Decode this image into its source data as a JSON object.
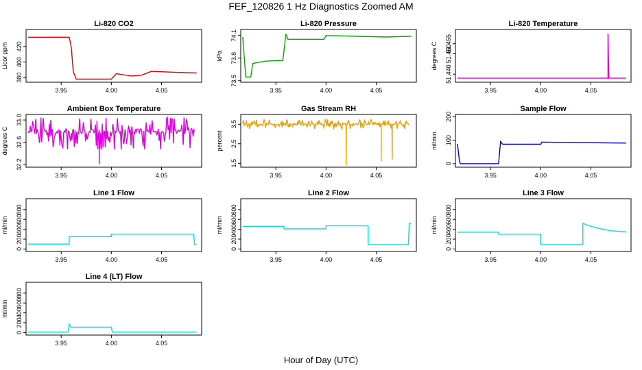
{
  "figure": {
    "title": "FEF_120826  1 Hz Diagnostics Zoomed AM",
    "xlabel": "Hour of Day (UTC)"
  },
  "chart_data": [
    {
      "type": "line",
      "title": "Li-820 CO2",
      "ylabel": "Licor ppm",
      "color": "#dd0000",
      "xlim": [
        3.915,
        4.09
      ],
      "xticks": [
        "3.95",
        "4.00",
        "4.05"
      ],
      "ylim": [
        374,
        442
      ],
      "yticks": [
        "380",
        "400",
        "420"
      ],
      "x": [
        3.917,
        3.958,
        3.96,
        3.962,
        3.965,
        4.0,
        4.005,
        4.01,
        4.02,
        4.03,
        4.04,
        4.06,
        4.085
      ],
      "y": [
        432,
        432,
        420,
        388,
        378,
        378,
        385,
        384,
        382,
        383,
        388,
        387,
        386
      ]
    },
    {
      "type": "line",
      "title": "Li-820 Pressure",
      "ylabel": "kPa",
      "color": "#00aa00",
      "xlim": [
        3.915,
        4.09
      ],
      "xticks": [
        "3.95",
        "4.00",
        "4.05"
      ],
      "ylim": [
        73.48,
        74.18
      ],
      "yticks": [
        "73.5",
        "73.8",
        "74.1"
      ],
      "x": [
        3.917,
        3.92,
        3.925,
        3.927,
        3.94,
        3.957,
        3.96,
        3.962,
        3.998,
        4.0,
        4.06,
        4.085
      ],
      "y": [
        74.08,
        73.55,
        73.55,
        73.73,
        73.76,
        73.77,
        74.12,
        74.05,
        74.05,
        74.1,
        74.08,
        74.09
      ]
    },
    {
      "type": "line",
      "title": "Li-820 Temperature",
      "ylabel": "degrees C",
      "color": "#e000e0",
      "xlim": [
        3.915,
        4.09
      ],
      "xticks": [
        "3.95",
        "4.00",
        "4.05"
      ],
      "ylim": [
        51.436,
        51.462
      ],
      "yticks": [
        "51.440",
        "51.450",
        "51.455"
      ],
      "x": [
        3.917,
        4.067,
        4.067,
        4.068,
        4.085
      ],
      "y": [
        51.438,
        51.438,
        51.46,
        51.438,
        51.438
      ]
    },
    {
      "type": "line",
      "title": "Ambient Box Temperature",
      "ylabel": "degrees C",
      "color": "#e000e0",
      "xlim": [
        3.915,
        4.09
      ],
      "xticks": [
        "3.95",
        "4.00",
        "4.05"
      ],
      "ylim": [
        32.15,
        33.1
      ],
      "yticks": [
        "32.2",
        "32.6",
        "33.0"
      ],
      "baseline": 32.8,
      "noise_lo": 32.45,
      "noise_hi": 33.05,
      "x": [
        3.917,
        4.085
      ],
      "y": [
        32.8,
        32.8
      ],
      "spike_x": [
        3.988
      ],
      "spike_y": [
        32.2
      ]
    },
    {
      "type": "line",
      "title": "Gas Stream RH",
      "ylabel": "percent",
      "color": "#e8a000",
      "xlim": [
        3.915,
        4.09
      ],
      "xticks": [
        "3.95",
        "4.00",
        "4.05"
      ],
      "ylim": [
        1.3,
        4.0
      ],
      "yticks": [
        "1.5",
        "2.5",
        "3.5"
      ],
      "baseline": 3.5,
      "noise_lo": 3.25,
      "noise_hi": 3.75,
      "x": [
        3.917,
        4.085
      ],
      "y": [
        3.5,
        3.5
      ],
      "spike_x": [
        4.02,
        4.055,
        4.066
      ],
      "spike_y": [
        1.4,
        1.6,
        1.7
      ]
    },
    {
      "type": "line",
      "title": "Sample Flow",
      "ylabel": "ml/min",
      "color": "#0000bb",
      "xlim": [
        3.915,
        4.09
      ],
      "xticks": [
        "3.95",
        "4.00",
        "4.05"
      ],
      "ylim": [
        -15,
        210
      ],
      "yticks": [
        "0",
        "100",
        "200"
      ],
      "x": [
        3.917,
        3.919,
        3.92,
        3.958,
        3.96,
        3.962,
        4.0,
        4.001,
        4.085
      ],
      "y": [
        85,
        10,
        0,
        0,
        95,
        83,
        83,
        92,
        88
      ]
    },
    {
      "type": "line",
      "title": "Line 1 Flow",
      "ylabel": "ml/min",
      "color": "#00e0e0",
      "xlim": [
        3.915,
        4.09
      ],
      "xticks": [
        "3.95",
        "4.00",
        "4.05"
      ],
      "ylim": [
        -50,
        1020
      ],
      "yticks": [
        "0",
        "200",
        "400",
        "600",
        "800"
      ],
      "x": [
        3.917,
        3.958,
        3.958,
        4.0,
        4.0,
        4.082,
        4.083,
        4.085
      ],
      "y": [
        100,
        100,
        250,
        250,
        300,
        300,
        90,
        90
      ]
    },
    {
      "type": "line",
      "title": "Line 2 Flow",
      "ylabel": "ml/min",
      "color": "#00e0e0",
      "xlim": [
        3.915,
        4.09
      ],
      "xticks": [
        "3.95",
        "4.00",
        "4.05"
      ],
      "ylim": [
        -50,
        1020
      ],
      "yticks": [
        "0",
        "200",
        "400",
        "600",
        "800"
      ],
      "x": [
        3.917,
        3.958,
        3.958,
        4.0,
        4.0,
        4.042,
        4.042,
        4.082,
        4.083,
        4.085
      ],
      "y": [
        460,
        460,
        410,
        410,
        470,
        470,
        90,
        90,
        520,
        520
      ]
    },
    {
      "type": "line",
      "title": "Line 3 Flow",
      "ylabel": "ml/min",
      "color": "#00e0e0",
      "xlim": [
        3.915,
        4.09
      ],
      "xticks": [
        "3.95",
        "4.00",
        "4.05"
      ],
      "ylim": [
        -50,
        1020
      ],
      "yticks": [
        "0",
        "200",
        "400",
        "600",
        "800"
      ],
      "x": [
        3.917,
        3.958,
        3.958,
        4.0,
        4.0,
        4.042,
        4.042,
        4.05,
        4.06,
        4.07,
        4.085
      ],
      "y": [
        340,
        340,
        300,
        300,
        90,
        90,
        520,
        460,
        410,
        370,
        350
      ]
    },
    {
      "type": "line",
      "title": "Line 4 (LT) Flow",
      "ylabel": "ml/min",
      "color": "#00e0e0",
      "xlim": [
        3.915,
        4.09
      ],
      "xticks": [
        "3.95",
        "4.00",
        "4.05"
      ],
      "ylim": [
        -50,
        1020
      ],
      "yticks": [
        "0",
        "200",
        "400",
        "600",
        "800"
      ],
      "x": [
        3.917,
        3.957,
        3.958,
        3.96,
        4.0,
        4.001,
        4.085
      ],
      "y": [
        10,
        10,
        170,
        110,
        110,
        10,
        10
      ]
    }
  ]
}
